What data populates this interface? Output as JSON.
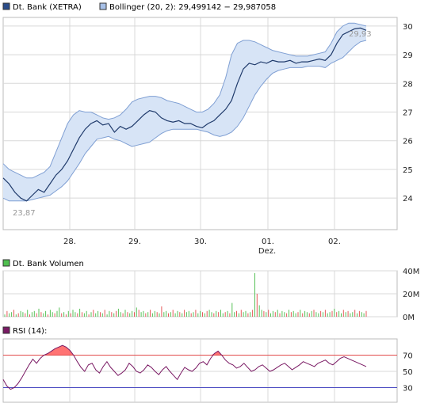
{
  "legend": {
    "price_label": "Dt. Bank (XETRA)",
    "bollinger_label": "Bollinger (20, 2): 29,499142 − 29,987058",
    "volume_label": "Dt. Bank Volumen",
    "rsi_label": "RSI (14):"
  },
  "colors": {
    "price": "#1f3a6b",
    "band_fill": "#d7e4f6",
    "band_stroke": "#7f9fd3",
    "volume_up": "#57c157",
    "volume_down": "#e55b5b",
    "rsi_line": "#7a1a64",
    "rsi_fill": "#ff5a5a",
    "rsi_70": "#e24b4b",
    "rsi_30": "#4b4bc2",
    "grid": "#d8d8d8",
    "legend_price_box": "#2a4c8a",
    "legend_bollinger_box": "#a8c1e8",
    "legend_volume_box": "#4fbf4f",
    "legend_rsi_box": "#7a1a64"
  },
  "chart_data": [
    {
      "type": "line",
      "panel": "price",
      "x_ticks": [
        "28.",
        "29.",
        "30.",
        "01.",
        "02."
      ],
      "x_sublabel": "Dez.",
      "y_ticks": [
        24,
        25,
        26,
        27,
        28,
        29,
        30
      ],
      "ylim": [
        22.9,
        30.3
      ],
      "annotations": {
        "high": "29,93",
        "low": "23,87"
      },
      "series": [
        {
          "name": "Dt. Bank (XETRA)",
          "values": [
            24.7,
            24.5,
            24.2,
            24.0,
            23.9,
            24.1,
            24.3,
            24.2,
            24.5,
            24.8,
            25.0,
            25.3,
            25.7,
            26.1,
            26.4,
            26.6,
            26.7,
            26.55,
            26.6,
            26.3,
            26.5,
            26.4,
            26.5,
            26.7,
            26.9,
            27.05,
            27.0,
            26.8,
            26.7,
            26.65,
            26.7,
            26.6,
            26.6,
            26.5,
            26.45,
            26.6,
            26.7,
            26.9,
            27.1,
            27.4,
            28.0,
            28.5,
            28.7,
            28.65,
            28.75,
            28.7,
            28.8,
            28.75,
            28.75,
            28.8,
            28.7,
            28.75,
            28.75,
            28.8,
            28.85,
            28.8,
            29.0,
            29.4,
            29.7,
            29.8,
            29.9,
            29.93,
            29.85
          ]
        },
        {
          "name": "Bollinger (20, 2)",
          "upper": [
            25.2,
            25.0,
            24.9,
            24.8,
            24.7,
            24.7,
            24.8,
            24.9,
            25.1,
            25.6,
            26.1,
            26.6,
            26.9,
            27.05,
            27.0,
            27.0,
            26.9,
            26.8,
            26.75,
            26.8,
            26.9,
            27.1,
            27.35,
            27.45,
            27.5,
            27.55,
            27.55,
            27.5,
            27.4,
            27.35,
            27.3,
            27.2,
            27.1,
            27.0,
            27.0,
            27.1,
            27.3,
            27.6,
            28.2,
            29.0,
            29.4,
            29.5,
            29.5,
            29.45,
            29.35,
            29.25,
            29.15,
            29.1,
            29.05,
            29.0,
            28.95,
            28.95,
            28.95,
            29.0,
            29.05,
            29.1,
            29.4,
            29.8,
            30.0,
            30.1,
            30.1,
            30.05,
            30.0
          ],
          "lower": [
            24.0,
            23.9,
            23.9,
            23.9,
            23.9,
            23.95,
            24.0,
            24.05,
            24.1,
            24.25,
            24.4,
            24.6,
            24.9,
            25.2,
            25.55,
            25.8,
            26.05,
            26.1,
            26.15,
            26.05,
            26.0,
            25.9,
            25.8,
            25.85,
            25.9,
            25.95,
            26.1,
            26.25,
            26.35,
            26.4,
            26.4,
            26.4,
            26.4,
            26.4,
            26.35,
            26.3,
            26.2,
            26.15,
            26.2,
            26.3,
            26.5,
            26.8,
            27.2,
            27.6,
            27.9,
            28.15,
            28.35,
            28.45,
            28.5,
            28.55,
            28.55,
            28.55,
            28.6,
            28.6,
            28.6,
            28.55,
            28.7,
            28.8,
            28.9,
            29.1,
            29.3,
            29.45,
            29.5
          ]
        }
      ]
    },
    {
      "type": "bar",
      "panel": "volume",
      "y_ticks": [
        "0M",
        "20M",
        "40M"
      ],
      "ylim": [
        0,
        40
      ],
      "values": [
        2,
        5,
        3,
        4,
        6,
        2,
        3,
        5,
        4,
        3,
        6,
        2,
        4,
        5,
        3,
        7,
        4,
        3,
        5,
        2,
        6,
        4,
        3,
        5,
        8,
        3,
        4,
        2,
        5,
        3,
        6,
        4,
        3,
        7,
        4,
        3,
        5,
        2,
        4,
        6,
        3,
        5,
        4,
        3,
        6,
        2,
        5,
        4,
        3,
        5,
        7,
        4,
        3,
        6,
        4,
        3,
        5,
        4,
        8,
        6,
        4,
        5,
        3,
        4,
        6,
        3,
        5,
        4,
        3,
        9,
        4,
        5,
        3,
        4,
        6,
        3,
        5,
        4,
        3,
        6,
        4,
        5,
        3,
        4,
        6,
        3,
        5,
        4,
        3,
        5,
        6,
        4,
        3,
        5,
        4,
        6,
        3,
        4,
        5,
        3,
        12,
        4,
        5,
        3,
        6,
        4,
        5,
        3,
        4,
        6,
        38,
        20,
        10,
        6,
        5,
        4,
        6,
        3,
        5,
        4,
        6,
        3,
        5,
        4,
        3,
        6,
        4,
        5,
        3,
        4,
        6,
        3,
        5,
        4,
        3,
        5,
        6,
        4,
        3,
        5,
        4,
        6,
        3,
        4,
        5,
        7,
        4,
        5,
        3,
        6,
        4,
        5,
        3,
        4,
        6,
        3,
        5,
        4,
        3,
        5
      ],
      "up": [
        1,
        0,
        1,
        1,
        0,
        1,
        0,
        1,
        1,
        0,
        1,
        0,
        1,
        1,
        0,
        1,
        0,
        1,
        1,
        0,
        1,
        1,
        0,
        1,
        1,
        0,
        1,
        0,
        1,
        0,
        1,
        1,
        0,
        1,
        0,
        1,
        1,
        0,
        1,
        0,
        1,
        1,
        0,
        1,
        0,
        1,
        1,
        0,
        1,
        0,
        1,
        1,
        0,
        1,
        0,
        1,
        1,
        0,
        1,
        0,
        1,
        1,
        0,
        1,
        0,
        1,
        1,
        0,
        1,
        0,
        1,
        1,
        0,
        1,
        0,
        1,
        1,
        0,
        1,
        0,
        1,
        1,
        0,
        1,
        0,
        1,
        1,
        0,
        1,
        0,
        1,
        1,
        0,
        1,
        0,
        1,
        1,
        0,
        1,
        0,
        1,
        1,
        0,
        1,
        0,
        1,
        1,
        0,
        1,
        0,
        1,
        0,
        1,
        1,
        0,
        1,
        0,
        1,
        1,
        0,
        1,
        0,
        1,
        1,
        0,
        1,
        0,
        1,
        1,
        0,
        1,
        0,
        1,
        1,
        0,
        1,
        0,
        1,
        1,
        0,
        1,
        0,
        1,
        1,
        0,
        1,
        0,
        1,
        1,
        0,
        1,
        0,
        1,
        1,
        0,
        1,
        0,
        1,
        1,
        0
      ]
    },
    {
      "type": "line",
      "panel": "rsi",
      "y_ticks": [
        30,
        50,
        70
      ],
      "ylim": [
        12,
        90
      ],
      "lines": [
        30,
        70
      ],
      "series": [
        {
          "name": "RSI (14)",
          "values": [
            40,
            32,
            28,
            30,
            35,
            42,
            50,
            58,
            65,
            60,
            66,
            70,
            72,
            75,
            78,
            80,
            82,
            80,
            76,
            70,
            62,
            55,
            50,
            58,
            60,
            52,
            48,
            56,
            62,
            55,
            50,
            45,
            48,
            52,
            60,
            56,
            50,
            48,
            52,
            58,
            55,
            50,
            46,
            52,
            56,
            50,
            45,
            40,
            48,
            55,
            52,
            50,
            54,
            60,
            62,
            58,
            66,
            72,
            75,
            70,
            64,
            60,
            58,
            54,
            56,
            60,
            55,
            50,
            52,
            56,
            58,
            54,
            50,
            52,
            55,
            58,
            60,
            56,
            52,
            55,
            58,
            62,
            60,
            58,
            56,
            60,
            62,
            64,
            60,
            58,
            62,
            66,
            68,
            66,
            64,
            62,
            60,
            58,
            56
          ]
        }
      ]
    }
  ]
}
